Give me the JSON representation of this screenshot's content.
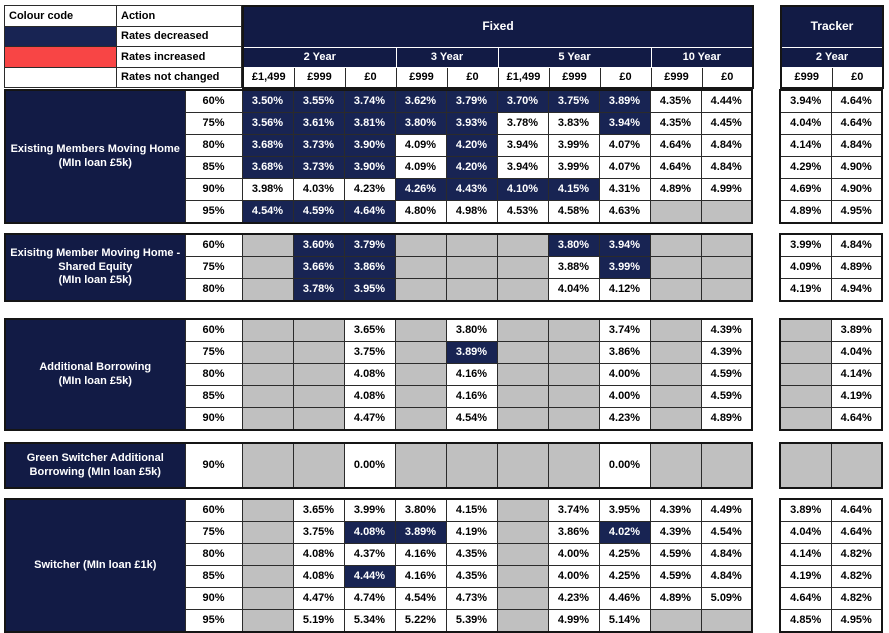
{
  "colors": {
    "navy_header": "#121B45",
    "navy_decreased": "#182453",
    "red_increased": "#F84545",
    "gray_na": "#C0C0C0",
    "white_unchanged": "#FFFFFF"
  },
  "legend": {
    "col1_header": "Colour code",
    "col2_header": "Action",
    "rows": [
      {
        "swatch": "navy",
        "action": "Rates decreased"
      },
      {
        "swatch": "red",
        "action": "Rates increased"
      },
      {
        "swatch": "white",
        "action": "Rates not changed"
      }
    ]
  },
  "fixed": {
    "title": "Fixed",
    "year_groups": [
      {
        "label": "2 Year",
        "fees": [
          "£1,499",
          "£999",
          "£0"
        ]
      },
      {
        "label": "3 Year",
        "fees": [
          "£999",
          "£0"
        ]
      },
      {
        "label": "5 Year",
        "fees": [
          "£1,499",
          "£999",
          "£0"
        ]
      },
      {
        "label": "10 Year",
        "fees": [
          "£999",
          "£0"
        ]
      }
    ],
    "column_keys": [
      "2yr-fee1499",
      "2yr-fee999",
      "2yr-fee0",
      "3yr-fee999",
      "3yr-fee0",
      "5yr-fee1499",
      "5yr-fee999",
      "5yr-fee0",
      "10yr-fee999",
      "10yr-fee0"
    ]
  },
  "tracker": {
    "title": "Tracker",
    "year_groups": [
      {
        "label": "2 Year",
        "fees": [
          "£999",
          "£0"
        ]
      }
    ],
    "column_keys": [
      "tracker-2yr-fee999",
      "tracker-2yr-fee0"
    ]
  },
  "cell_code_legend": {
    "d": "rates decreased (navy)",
    "n": "rates not changed (white)",
    "x": "not available (gray)"
  },
  "groups": [
    {
      "label_lines": [
        "Existing Members Moving Home",
        "(MIn loan £5k)"
      ],
      "rows": [
        {
          "ltv": "60%",
          "fixed": [
            "d:3.50%",
            "d:3.55%",
            "d:3.74%",
            "d:3.62%",
            "d:3.79%",
            "d:3.70%",
            "d:3.75%",
            "d:3.89%",
            "n:4.35%",
            "n:4.44%"
          ],
          "tracker": [
            "n:3.94%",
            "n:4.64%"
          ]
        },
        {
          "ltv": "75%",
          "fixed": [
            "d:3.56%",
            "d:3.61%",
            "d:3.81%",
            "d:3.80%",
            "d:3.93%",
            "n:3.78%",
            "n:3.83%",
            "d:3.94%",
            "n:4.35%",
            "n:4.45%"
          ],
          "tracker": [
            "n:4.04%",
            "n:4.64%"
          ]
        },
        {
          "ltv": "80%",
          "fixed": [
            "d:3.68%",
            "d:3.73%",
            "d:3.90%",
            "n:4.09%",
            "d:4.20%",
            "n:3.94%",
            "n:3.99%",
            "n:4.07%",
            "n:4.64%",
            "n:4.84%"
          ],
          "tracker": [
            "n:4.14%",
            "n:4.84%"
          ]
        },
        {
          "ltv": "85%",
          "fixed": [
            "d:3.68%",
            "d:3.73%",
            "d:3.90%",
            "n:4.09%",
            "d:4.20%",
            "n:3.94%",
            "n:3.99%",
            "n:4.07%",
            "n:4.64%",
            "n:4.84%"
          ],
          "tracker": [
            "n:4.29%",
            "n:4.90%"
          ]
        },
        {
          "ltv": "90%",
          "fixed": [
            "n:3.98%",
            "n:4.03%",
            "n:4.23%",
            "d:4.26%",
            "d:4.43%",
            "d:4.10%",
            "d:4.15%",
            "n:4.31%",
            "n:4.89%",
            "n:4.99%"
          ],
          "tracker": [
            "n:4.69%",
            "n:4.90%"
          ]
        },
        {
          "ltv": "95%",
          "fixed": [
            "d:4.54%",
            "d:4.59%",
            "d:4.64%",
            "n:4.80%",
            "n:4.98%",
            "n:4.53%",
            "n:4.58%",
            "n:4.63%",
            "x:",
            "x:"
          ],
          "tracker": [
            "n:4.89%",
            "n:4.95%"
          ]
        }
      ]
    },
    {
      "label_lines": [
        "Exisitng Member Moving Home -",
        "Shared Equity",
        "(MIn loan £5k)"
      ],
      "rows": [
        {
          "ltv": "60%",
          "fixed": [
            "x:",
            "d:3.60%",
            "d:3.79%",
            "x:",
            "x:",
            "x:",
            "d:3.80%",
            "d:3.94%",
            "x:",
            "x:"
          ],
          "tracker": [
            "n:3.99%",
            "n:4.84%"
          ]
        },
        {
          "ltv": "75%",
          "fixed": [
            "x:",
            "d:3.66%",
            "d:3.86%",
            "x:",
            "x:",
            "x:",
            "n:3.88%",
            "d:3.99%",
            "x:",
            "x:"
          ],
          "tracker": [
            "n:4.09%",
            "n:4.89%"
          ]
        },
        {
          "ltv": "80%",
          "fixed": [
            "x:",
            "d:3.78%",
            "d:3.95%",
            "x:",
            "x:",
            "x:",
            "n:4.04%",
            "n:4.12%",
            "x:",
            "x:"
          ],
          "tracker": [
            "n:4.19%",
            "n:4.94%"
          ]
        }
      ]
    },
    {
      "label_lines": [
        "Additional Borrowing",
        "(MIn loan £5k)"
      ],
      "rows": [
        {
          "ltv": "60%",
          "fixed": [
            "x:",
            "x:",
            "n:3.65%",
            "x:",
            "n:3.80%",
            "x:",
            "x:",
            "n:3.74%",
            "x:",
            "n:4.39%"
          ],
          "tracker": [
            "x:",
            "n:3.89%"
          ]
        },
        {
          "ltv": "75%",
          "fixed": [
            "x:",
            "x:",
            "n:3.75%",
            "x:",
            "d:3.89%",
            "x:",
            "x:",
            "n:3.86%",
            "x:",
            "n:4.39%"
          ],
          "tracker": [
            "x:",
            "n:4.04%"
          ]
        },
        {
          "ltv": "80%",
          "fixed": [
            "x:",
            "x:",
            "n:4.08%",
            "x:",
            "n:4.16%",
            "x:",
            "x:",
            "n:4.00%",
            "x:",
            "n:4.59%"
          ],
          "tracker": [
            "x:",
            "n:4.14%"
          ]
        },
        {
          "ltv": "85%",
          "fixed": [
            "x:",
            "x:",
            "n:4.08%",
            "x:",
            "n:4.16%",
            "x:",
            "x:",
            "n:4.00%",
            "x:",
            "n:4.59%"
          ],
          "tracker": [
            "x:",
            "n:4.19%"
          ]
        },
        {
          "ltv": "90%",
          "fixed": [
            "x:",
            "x:",
            "n:4.47%",
            "x:",
            "n:4.54%",
            "x:",
            "x:",
            "n:4.23%",
            "x:",
            "n:4.89%"
          ],
          "tracker": [
            "x:",
            "n:4.64%"
          ]
        }
      ]
    },
    {
      "label_lines": [
        "Green Switcher Additional",
        "Borrowing (MIn loan £5k)"
      ],
      "rows": [
        {
          "ltv": "90%",
          "fixed": [
            "x:",
            "x:",
            "n:0.00%",
            "x:",
            "x:",
            "x:",
            "x:",
            "n:0.00%",
            "x:",
            "x:"
          ],
          "tracker": [
            "x:",
            "x:"
          ]
        }
      ]
    },
    {
      "label_lines": [
        "Switcher (MIn loan £1k)"
      ],
      "rows": [
        {
          "ltv": "60%",
          "fixed": [
            "x:",
            "n:3.65%",
            "n:3.99%",
            "n:3.80%",
            "n:4.15%",
            "x:",
            "n:3.74%",
            "n:3.95%",
            "n:4.39%",
            "n:4.49%"
          ],
          "tracker": [
            "n:3.89%",
            "n:4.64%"
          ]
        },
        {
          "ltv": "75%",
          "fixed": [
            "x:",
            "n:3.75%",
            "d:4.08%",
            "d:3.89%",
            "n:4.19%",
            "x:",
            "n:3.86%",
            "d:4.02%",
            "n:4.39%",
            "n:4.54%"
          ],
          "tracker": [
            "n:4.04%",
            "n:4.64%"
          ]
        },
        {
          "ltv": "80%",
          "fixed": [
            "x:",
            "n:4.08%",
            "n:4.37%",
            "n:4.16%",
            "n:4.35%",
            "x:",
            "n:4.00%",
            "n:4.25%",
            "n:4.59%",
            "n:4.84%"
          ],
          "tracker": [
            "n:4.14%",
            "n:4.82%"
          ]
        },
        {
          "ltv": "85%",
          "fixed": [
            "x:",
            "n:4.08%",
            "d:4.44%",
            "n:4.16%",
            "n:4.35%",
            "x:",
            "n:4.00%",
            "n:4.25%",
            "n:4.59%",
            "n:4.84%"
          ],
          "tracker": [
            "n:4.19%",
            "n:4.82%"
          ]
        },
        {
          "ltv": "90%",
          "fixed": [
            "x:",
            "n:4.47%",
            "n:4.74%",
            "n:4.54%",
            "n:4.73%",
            "x:",
            "n:4.23%",
            "n:4.46%",
            "n:4.89%",
            "n:5.09%"
          ],
          "tracker": [
            "n:4.64%",
            "n:4.82%"
          ]
        },
        {
          "ltv": "95%",
          "fixed": [
            "x:",
            "n:5.19%",
            "n:5.34%",
            "n:5.22%",
            "n:5.39%",
            "x:",
            "n:4.99%",
            "n:5.14%",
            "x:",
            "x:"
          ],
          "tracker": [
            "n:4.85%",
            "n:4.95%"
          ]
        }
      ]
    }
  ]
}
